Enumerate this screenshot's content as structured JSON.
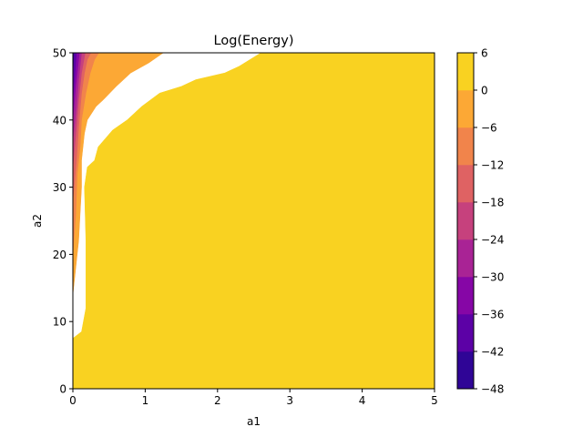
{
  "chart_data": {
    "type": "contour",
    "title": "Log(Energy)",
    "xlabel": "a1",
    "ylabel": "a2",
    "xlim": [
      0,
      5
    ],
    "ylim": [
      0,
      50
    ],
    "xticks": [
      "0",
      "1",
      "2",
      "3",
      "4",
      "5"
    ],
    "yticks": [
      "0",
      "10",
      "20",
      "30",
      "40",
      "50"
    ],
    "grid": false,
    "colorbar": {
      "levels": [
        -48,
        -42,
        -36,
        -30,
        -24,
        -18,
        -12,
        -6,
        0,
        6
      ],
      "ticks": [
        "−48",
        "−42",
        "−36",
        "−30",
        "−24",
        "−18",
        "−12",
        "−6",
        "0",
        "6"
      ],
      "colors": [
        "#2f0596",
        "#5c01a6",
        "#8606a6",
        "#a92395",
        "#c6417d",
        "#df6263",
        "#f1844b",
        "#fca835",
        "#f9d221"
      ],
      "colormap": "plasma"
    },
    "regions": [
      {
        "level_min": 0,
        "level_max": 6,
        "color": "#f9d221",
        "boundary": [
          [
            0,
            7.5
          ],
          [
            0.12,
            8.5
          ],
          [
            0.18,
            12
          ],
          [
            0.18,
            22
          ],
          [
            0.16,
            30
          ],
          [
            0.2,
            33
          ],
          [
            0.3,
            34
          ],
          [
            0.35,
            36
          ],
          [
            0.55,
            38.5
          ],
          [
            0.75,
            40
          ],
          [
            0.95,
            42
          ],
          [
            1.2,
            44
          ],
          [
            1.5,
            45
          ],
          [
            1.7,
            46
          ],
          [
            2.1,
            47
          ],
          [
            2.3,
            48
          ],
          [
            2.45,
            49
          ],
          [
            2.6,
            50
          ]
        ]
      },
      {
        "level_min": -6,
        "level_max": 0,
        "color": "#fca835",
        "boundary": [
          [
            0,
            14
          ],
          [
            0.08,
            22
          ],
          [
            0.12,
            30
          ],
          [
            0.12,
            34
          ],
          [
            0.16,
            38
          ],
          [
            0.2,
            40
          ],
          [
            0.32,
            42
          ],
          [
            0.42,
            43
          ],
          [
            0.6,
            45
          ],
          [
            0.8,
            47
          ],
          [
            1.05,
            48.5
          ],
          [
            1.25,
            50
          ]
        ]
      },
      {
        "level_min": -12,
        "level_max": -6,
        "color": "#f1844b",
        "boundary": [
          [
            0,
            20
          ],
          [
            0.04,
            26
          ],
          [
            0.06,
            32
          ],
          [
            0.1,
            36
          ],
          [
            0.12,
            40
          ],
          [
            0.18,
            44
          ],
          [
            0.24,
            47
          ],
          [
            0.3,
            49
          ],
          [
            0.36,
            50
          ]
        ]
      },
      {
        "level_min": -18,
        "level_max": -12,
        "color": "#df6263",
        "boundary": [
          [
            0,
            28
          ],
          [
            0.05,
            34
          ],
          [
            0.08,
            39
          ],
          [
            0.12,
            44
          ],
          [
            0.16,
            47
          ],
          [
            0.2,
            49
          ],
          [
            0.25,
            50
          ]
        ]
      },
      {
        "level_min": -24,
        "level_max": -18,
        "color": "#c6417d",
        "boundary": [
          [
            0,
            33
          ],
          [
            0.05,
            39
          ],
          [
            0.08,
            43
          ],
          [
            0.12,
            47
          ],
          [
            0.17,
            50
          ]
        ]
      },
      {
        "level_min": -30,
        "level_max": -24,
        "color": "#a92395",
        "boundary": [
          [
            0,
            37
          ],
          [
            0.05,
            42
          ],
          [
            0.08,
            46
          ],
          [
            0.12,
            50
          ]
        ]
      },
      {
        "level_min": -36,
        "level_max": -30,
        "color": "#8606a6",
        "boundary": [
          [
            0,
            40
          ],
          [
            0.04,
            45
          ],
          [
            0.07,
            48
          ],
          [
            0.09,
            50
          ]
        ]
      },
      {
        "level_min": -42,
        "level_max": -36,
        "color": "#5c01a6",
        "boundary": [
          [
            0,
            43
          ],
          [
            0.03,
            47
          ],
          [
            0.05,
            50
          ]
        ]
      },
      {
        "level_min": -48,
        "level_max": -42,
        "color": "#2f0596",
        "boundary": [
          [
            0,
            47
          ],
          [
            0.015,
            50
          ]
        ]
      }
    ]
  }
}
